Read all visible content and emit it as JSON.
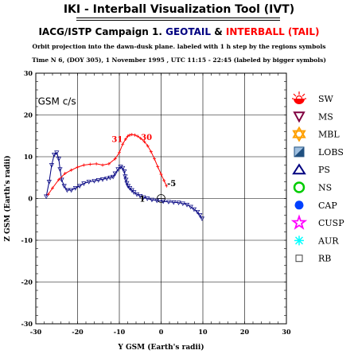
{
  "page": {
    "title": "IKI - Interball Visualization Tool (IVT)",
    "subtitle_prefix": "IACG/ISTP Campaign 1.",
    "subtitle_geotail": "GEOTAIL",
    "subtitle_amp": "&",
    "subtitle_interball": "INTERBALL (TAIL)",
    "line1": "Orbit projection into the dawn-dusk plane. labeled with 1 h step by the regions symbols",
    "line2": "Time N 6, (DOY 305), 1 November 1995 , UTC 11:15 - 22:45 (labeled by bigger symbols)",
    "colors": {
      "geotail": "#000080",
      "interball": "#ff0000"
    }
  },
  "chart_data": {
    "type": "line",
    "title": "IKI - Interball Visualization Tool (IVT)",
    "xlabel": "Y GSM (Earth's radii)",
    "ylabel": "Z GSM (Earth's radii)",
    "frame_label": "GSM c/s",
    "xlim": [
      -30,
      30
    ],
    "ylim": [
      -30,
      30
    ],
    "xticks": [
      -30,
      -20,
      -10,
      0,
      10,
      20,
      30
    ],
    "yticks": [
      -30,
      -20,
      -10,
      0,
      10,
      20,
      30
    ],
    "grid": true,
    "series": [
      {
        "name": "GEOTAIL",
        "color": "#000080",
        "x": [
          -27.5,
          -26.8,
          -26.2,
          -25.6,
          -25.0,
          -24.5,
          -24.2,
          -23.8,
          -23.2,
          -22.5,
          -21.5,
          -20.5,
          -19.5,
          -18.5,
          -17.3,
          -16.0,
          -15.0,
          -14.0,
          -13.0,
          -12.2,
          -11.5,
          -11.0,
          -10.3,
          -9.7,
          -9.2,
          -8.8,
          -8.6,
          -8.4,
          -8.2,
          -7.9,
          -7.5,
          -7.0,
          -6.5,
          -5.8,
          -5.0,
          -4.2,
          -3.3,
          -2.2,
          -1.0,
          0.5,
          1.8,
          3.0,
          4.2,
          5.2,
          6.2,
          7.1,
          7.9,
          8.7,
          9.3,
          9.8
        ],
        "y": [
          0.5,
          4.0,
          8.0,
          10.5,
          11.0,
          9.5,
          7.0,
          4.5,
          3.0,
          2.0,
          2.0,
          2.5,
          3.0,
          3.6,
          4.0,
          4.2,
          4.4,
          4.6,
          4.8,
          5.0,
          5.2,
          6.0,
          7.0,
          7.6,
          7.3,
          6.5,
          5.3,
          4.5,
          3.7,
          3.0,
          2.5,
          2.0,
          1.5,
          1.0,
          0.6,
          0.3,
          0.0,
          -0.3,
          -0.5,
          -0.7,
          -0.8,
          -0.9,
          -1.0,
          -1.2,
          -1.5,
          -2.0,
          -2.6,
          -3.2,
          -4.0,
          -4.8
        ]
      },
      {
        "name": "INTERBALL (TAIL)",
        "color": "#ff0000",
        "x": [
          -27.0,
          -26.0,
          -24.5,
          -23.0,
          -21.5,
          -20.0,
          -18.5,
          -17.0,
          -15.5,
          -14.0,
          -12.5,
          -11.0,
          -10.0,
          -9.2,
          -8.5,
          -8.0,
          -7.5,
          -7.0,
          -6.3,
          -5.6,
          -4.9,
          -4.0,
          -3.2,
          -2.4,
          -1.6,
          -0.8,
          0.0,
          0.7,
          1.3
        ],
        "y": [
          1.0,
          2.5,
          4.5,
          6.0,
          6.8,
          7.5,
          8.0,
          8.2,
          8.3,
          8.0,
          8.3,
          9.5,
          11.0,
          13.0,
          14.2,
          14.9,
          15.2,
          15.3,
          15.2,
          14.9,
          14.4,
          13.6,
          12.6,
          11.2,
          9.5,
          7.6,
          5.8,
          4.3,
          3.0
        ]
      }
    ],
    "annotations": [
      {
        "text": "31",
        "x": -10.5,
        "y": 13.5,
        "color": "#ff0000"
      },
      {
        "text": "30",
        "x": -3.5,
        "y": 14.0,
        "color": "#ff0000"
      },
      {
        "text": "-5",
        "x": 2.5,
        "y": 3.0,
        "color": "#000000"
      },
      {
        "text": "1",
        "x": -4.5,
        "y": -0.8,
        "color": "#000000"
      }
    ],
    "legend": {
      "placement": "right",
      "entries": [
        {
          "label": "SW",
          "icon": "sw-icon",
          "color": "#ff0000"
        },
        {
          "label": "MS",
          "icon": "triangle-down-icon",
          "color": "#800040"
        },
        {
          "label": "MBL",
          "icon": "star-of-david-icon",
          "color": "#ffa000"
        },
        {
          "label": "LOBS",
          "icon": "split-square-icon",
          "color": "#2080c0"
        },
        {
          "label": "PS",
          "icon": "triangle-up-icon",
          "color": "#000080"
        },
        {
          "label": "NS",
          "icon": "circle-icon",
          "color": "#00cc00"
        },
        {
          "label": "CAP",
          "icon": "octagon-filled-icon",
          "color": "#0040ff"
        },
        {
          "label": "CUSP",
          "icon": "star-icon",
          "color": "#ff00ff"
        },
        {
          "label": "AUR",
          "icon": "asterisk-icon",
          "color": "#00ffff"
        },
        {
          "label": "RB",
          "icon": "square-icon",
          "color": "#404040"
        }
      ]
    }
  }
}
